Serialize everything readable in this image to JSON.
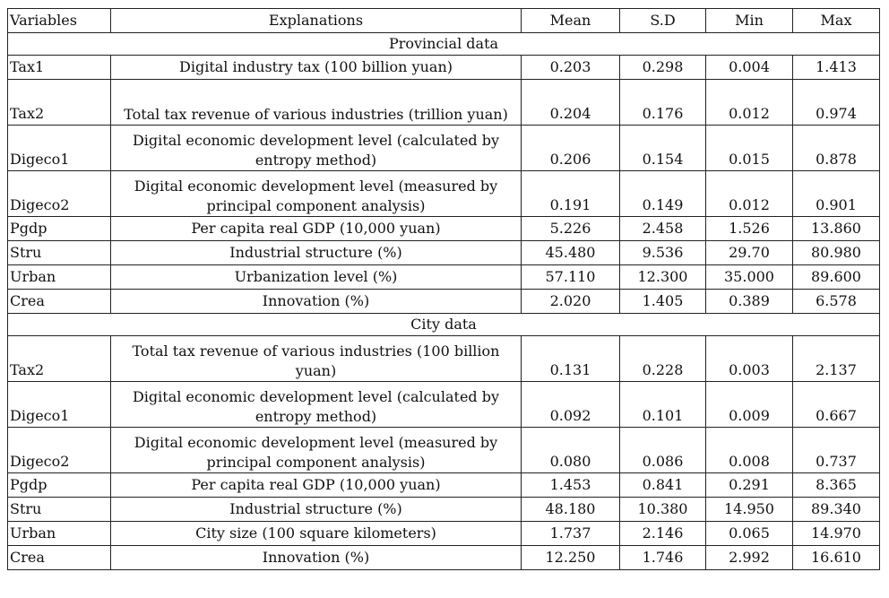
{
  "headers": [
    "Variables",
    "Explanations",
    "Mean",
    "S.D",
    "Min",
    "Max"
  ],
  "sections": [
    {
      "title": "Provincial data",
      "rows": [
        {
          "var": "Tax1",
          "exp": "Digital industry tax (100 billion yuan)",
          "mean": "0.203",
          "sd": "0.298",
          "min": "0.004",
          "max": "1.413"
        },
        {
          "var": "Tax2",
          "exp": "Total tax revenue of various industries (trillion yuan)",
          "mean": "0.204",
          "sd": "0.176",
          "min": "0.012",
          "max": "0.974"
        },
        {
          "var": "Digeco1",
          "exp": "Digital economic development level (calculated by entropy method)",
          "mean": "0.206",
          "sd": "0.154",
          "min": "0.015",
          "max": "0.878"
        },
        {
          "var": "Digeco2",
          "exp": "Digital economic development level (measured by principal component analysis)",
          "mean": "0.191",
          "sd": "0.149",
          "min": "0.012",
          "max": "0.901"
        },
        {
          "var": "Pgdp",
          "exp": "Per capita real GDP (10,000 yuan)",
          "mean": "5.226",
          "sd": "2.458",
          "min": "1.526",
          "max": "13.860"
        },
        {
          "var": "Stru",
          "exp": "Industrial structure (%)",
          "mean": "45.480",
          "sd": "9.536",
          "min": "29.70",
          "max": "80.980"
        },
        {
          "var": "Urban",
          "exp": "Urbanization level (%)",
          "mean": "57.110",
          "sd": "12.300",
          "min": "35.000",
          "max": "89.600"
        },
        {
          "var": "Crea",
          "exp": "Innovation (%)",
          "mean": "2.020",
          "sd": "1.405",
          "min": "0.389",
          "max": "6.578"
        }
      ]
    },
    {
      "title": "City data",
      "rows": [
        {
          "var": "Tax2",
          "exp": "Total tax revenue of various industries (100 billion yuan)",
          "mean": "0.131",
          "sd": "0.228",
          "min": "0.003",
          "max": "2.137"
        },
        {
          "var": "Digeco1",
          "exp": "Digital economic development level (calculated by entropy method)",
          "mean": "0.092",
          "sd": "0.101",
          "min": "0.009",
          "max": "0.667"
        },
        {
          "var": "Digeco2",
          "exp": "Digital economic development level (measured by principal component analysis)",
          "mean": "0.080",
          "sd": "0.086",
          "min": "0.008",
          "max": "0.737"
        },
        {
          "var": "Pgdp",
          "exp": "Per capita real GDP (10,000 yuan)",
          "mean": "1.453",
          "sd": "0.841",
          "min": "0.291",
          "max": "8.365"
        },
        {
          "var": "Stru",
          "exp": "Industrial structure (%)",
          "mean": "48.180",
          "sd": "10.380",
          "min": "14.950",
          "max": "89.340"
        },
        {
          "var": "Urban",
          "exp": "City size (100 square kilometers)",
          "mean": "1.737",
          "sd": "2.146",
          "min": "0.065",
          "max": "14.970"
        },
        {
          "var": "Crea",
          "exp": "Innovation (%)",
          "mean": "12.250",
          "sd": "1.746",
          "min": "2.992",
          "max": "16.610"
        }
      ]
    }
  ]
}
